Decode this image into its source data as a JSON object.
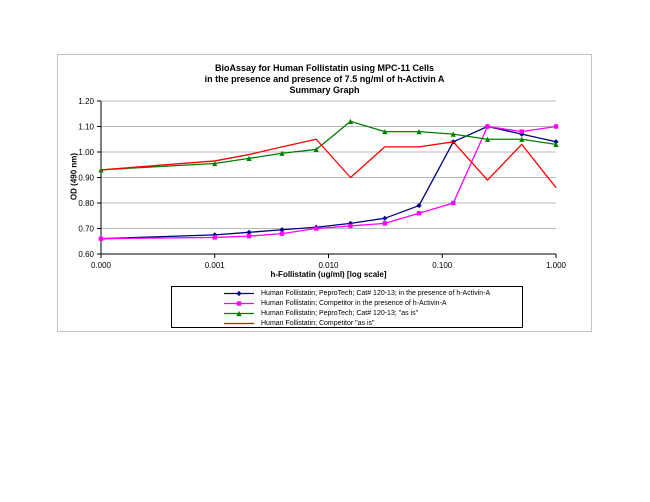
{
  "chart_data": {
    "type": "line",
    "title_lines": [
      "BioAssay for Human Follistatin using  MPC-11 Cells",
      "in the presence and presence of 7.5 ng/ml of h-Activin A",
      "Summary Graph"
    ],
    "xlabel": "h-Follistatin (ug/ml) [log scale]",
    "ylabel": "OD (490 nm)",
    "x_scale": "log",
    "x_ticks": [
      "0.000",
      "0.001",
      "0.010",
      "0.100",
      "1.000"
    ],
    "y_ticks": [
      "0.60",
      "0.70",
      "0.80",
      "0.90",
      "1.00",
      "1.10",
      "1.20"
    ],
    "ylim": [
      0.6,
      1.2
    ],
    "grid": "horizontal",
    "legend_position": "bottom",
    "x": [
      0,
      0.001,
      0.002,
      0.0039,
      0.0078,
      0.0156,
      0.03125,
      0.0625,
      0.125,
      0.25,
      0.5,
      1.0
    ],
    "series": [
      {
        "name": "Human Follistatin;  PeproTech; Cat# 120-13; in the presence of h-Activin-A",
        "color": "#000080",
        "marker": "diamond",
        "values": [
          0.66,
          0.675,
          0.685,
          0.695,
          0.705,
          0.72,
          0.74,
          0.79,
          1.04,
          1.1,
          1.07,
          1.04
        ]
      },
      {
        "name": "Human Follistatin; Competitor in the presence of h-Activin-A",
        "color": "#ff00ff",
        "marker": "square",
        "values": [
          0.66,
          0.665,
          0.67,
          0.68,
          0.7,
          0.71,
          0.72,
          0.76,
          0.8,
          1.1,
          1.08,
          1.1
        ]
      },
      {
        "name": "Human Follistatin;  PeproTech; Cat# 120-13; \"as is\"",
        "color": "#008000",
        "marker": "triangle",
        "values": [
          0.93,
          0.955,
          0.975,
          0.995,
          1.01,
          1.12,
          1.08,
          1.08,
          1.07,
          1.05,
          1.05,
          1.03
        ]
      },
      {
        "name": "Human Follistatin; Competitor \"as is\"",
        "color": "#ff0000",
        "marker": "none",
        "values": [
          0.93,
          0.965,
          0.99,
          1.02,
          1.05,
          0.9,
          1.02,
          1.02,
          1.04,
          0.89,
          1.03,
          0.86
        ]
      }
    ]
  }
}
